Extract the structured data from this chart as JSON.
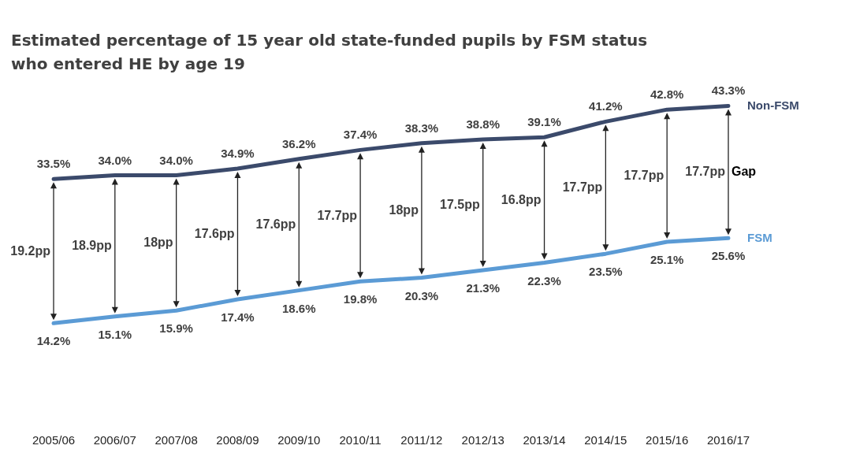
{
  "chart_data": {
    "type": "line",
    "title": "Estimated percentage of 15 year old state-funded pupils by FSM status who entered HE by age 19",
    "categories": [
      "2005/06",
      "2006/07",
      "2007/08",
      "2008/09",
      "2009/10",
      "2010/11",
      "2011/12",
      "2012/13",
      "2013/14",
      "2014/15",
      "2015/16",
      "2016/17"
    ],
    "series": [
      {
        "name": "Non-FSM",
        "color": "#3b4a6b",
        "values": [
          33.5,
          34.0,
          34.0,
          34.9,
          36.2,
          37.4,
          38.3,
          38.8,
          39.1,
          41.2,
          42.8,
          43.3
        ],
        "value_labels": [
          "33.5%",
          "34.0%",
          "34.0%",
          "34.9%",
          "36.2%",
          "37.4%",
          "38.3%",
          "38.8%",
          "39.1%",
          "41.2%",
          "42.8%",
          "43.3%"
        ]
      },
      {
        "name": "FSM",
        "color": "#5b9bd5",
        "values": [
          14.2,
          15.1,
          15.9,
          17.4,
          18.6,
          19.8,
          20.3,
          21.3,
          22.3,
          23.5,
          25.1,
          25.6
        ],
        "value_labels": [
          "14.2%",
          "15.1%",
          "15.9%",
          "17.4%",
          "18.6%",
          "19.8%",
          "20.3%",
          "21.3%",
          "22.3%",
          "23.5%",
          "25.1%",
          "25.6%"
        ]
      }
    ],
    "annotations": [
      "19.2pp",
      "18.9pp",
      "18pp",
      "17.6pp",
      "17.6pp",
      "17.7pp",
      "18pp",
      "17.5pp",
      "16.8pp",
      "17.7pp",
      "17.7pp",
      "17.7pp",
      "Gap"
    ]
  }
}
